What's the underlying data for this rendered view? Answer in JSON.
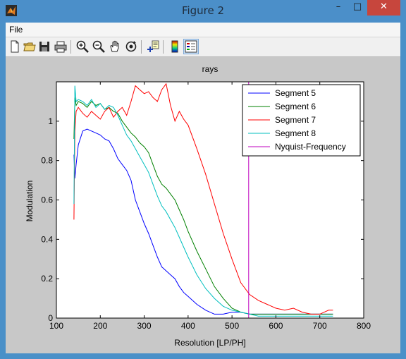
{
  "window": {
    "title": "Figure 2",
    "minimize": "–",
    "maximize": "□",
    "close": "✕"
  },
  "menu": {
    "file": "File"
  },
  "toolbar": {
    "icons": [
      "new-figure-icon",
      "open-icon",
      "save-icon",
      "print-icon",
      "zoom-in-icon",
      "zoom-out-icon",
      "pan-icon",
      "rotate-icon",
      "data-cursor-icon",
      "colorbar-icon",
      "legend-icon"
    ]
  },
  "chart_data": {
    "type": "line",
    "title": "rays",
    "xlabel": "Resolution [LP/PH]",
    "ylabel": "Modulation",
    "xlim": [
      100,
      800
    ],
    "ylim": [
      0,
      1.2
    ],
    "xticks": [
      100,
      200,
      300,
      400,
      500,
      600,
      700,
      800
    ],
    "yticks": [
      0,
      0.2,
      0.4,
      0.6,
      0.8,
      1
    ],
    "grid": false,
    "legend_position": "top-right",
    "series": [
      {
        "name": "Segment 5",
        "color": "#0000ff",
        "x": [
          140,
          142,
          145,
          150,
          160,
          170,
          180,
          190,
          200,
          210,
          220,
          230,
          240,
          250,
          260,
          270,
          280,
          290,
          300,
          310,
          320,
          330,
          340,
          350,
          360,
          370,
          380,
          390,
          400,
          420,
          440,
          460,
          480,
          500,
          520,
          540,
          560,
          580,
          600,
          620,
          640,
          660,
          680,
          700,
          720,
          730
        ],
        "y": [
          0.83,
          0.71,
          0.78,
          0.88,
          0.95,
          0.96,
          0.95,
          0.94,
          0.93,
          0.91,
          0.9,
          0.86,
          0.81,
          0.78,
          0.75,
          0.7,
          0.6,
          0.54,
          0.48,
          0.43,
          0.37,
          0.31,
          0.26,
          0.24,
          0.22,
          0.2,
          0.16,
          0.13,
          0.11,
          0.07,
          0.04,
          0.02,
          0.02,
          0.03,
          0.03,
          0.02,
          0.02,
          0.02,
          0.02,
          0.02,
          0.02,
          0.02,
          0.02,
          0.02,
          0.02,
          0.02
        ]
      },
      {
        "name": "Segment 6",
        "color": "#008000",
        "x": [
          140,
          142,
          145,
          150,
          160,
          170,
          180,
          190,
          200,
          210,
          220,
          230,
          240,
          250,
          260,
          270,
          280,
          290,
          300,
          310,
          320,
          330,
          340,
          350,
          360,
          370,
          380,
          390,
          400,
          420,
          440,
          460,
          480,
          500,
          520,
          540,
          560,
          580,
          600,
          620,
          640,
          660,
          680,
          700,
          720,
          730
        ],
        "y": [
          0.91,
          1.12,
          1.08,
          1.1,
          1.09,
          1.07,
          1.1,
          1.08,
          1.09,
          1.06,
          1.07,
          1.05,
          1.04,
          1.0,
          0.97,
          0.94,
          0.92,
          0.89,
          0.87,
          0.84,
          0.78,
          0.72,
          0.68,
          0.66,
          0.63,
          0.6,
          0.55,
          0.5,
          0.44,
          0.34,
          0.25,
          0.16,
          0.1,
          0.05,
          0.03,
          0.02,
          0.02,
          0.02,
          0.02,
          0.02,
          0.02,
          0.02,
          0.02,
          0.02,
          0.02,
          0.02
        ]
      },
      {
        "name": "Segment 7",
        "color": "#ff0000",
        "x": [
          140,
          142,
          145,
          150,
          160,
          170,
          180,
          190,
          200,
          210,
          220,
          230,
          240,
          250,
          260,
          270,
          280,
          290,
          300,
          310,
          320,
          330,
          340,
          350,
          360,
          370,
          380,
          390,
          400,
          420,
          440,
          460,
          480,
          500,
          520,
          540,
          560,
          580,
          600,
          620,
          640,
          660,
          680,
          700,
          720,
          730
        ],
        "y": [
          0.5,
          0.95,
          1.05,
          1.07,
          1.04,
          1.02,
          1.05,
          1.03,
          1.01,
          1.05,
          1.07,
          1.02,
          1.05,
          1.07,
          1.03,
          1.1,
          1.18,
          1.16,
          1.14,
          1.15,
          1.12,
          1.1,
          1.16,
          1.19,
          1.08,
          1.0,
          1.05,
          1.01,
          0.98,
          0.86,
          0.73,
          0.58,
          0.43,
          0.3,
          0.18,
          0.12,
          0.09,
          0.07,
          0.05,
          0.04,
          0.05,
          0.03,
          0.02,
          0.02,
          0.04,
          0.04
        ]
      },
      {
        "name": "Segment 8",
        "color": "#00bfbf",
        "x": [
          140,
          142,
          145,
          150,
          160,
          170,
          180,
          190,
          200,
          210,
          220,
          230,
          240,
          250,
          260,
          270,
          280,
          290,
          300,
          310,
          320,
          330,
          340,
          350,
          360,
          370,
          380,
          390,
          400,
          420,
          440,
          460,
          480,
          500,
          520,
          540,
          560,
          580,
          600,
          620,
          640,
          660,
          680,
          700,
          720,
          730
        ],
        "y": [
          0.58,
          1.18,
          1.1,
          1.11,
          1.1,
          1.08,
          1.11,
          1.07,
          1.09,
          1.06,
          1.08,
          1.07,
          1.03,
          0.98,
          0.93,
          0.9,
          0.86,
          0.82,
          0.78,
          0.74,
          0.68,
          0.62,
          0.57,
          0.54,
          0.5,
          0.46,
          0.41,
          0.36,
          0.31,
          0.22,
          0.15,
          0.1,
          0.06,
          0.04,
          0.03,
          0.02,
          0.01,
          0.01,
          0.01,
          0.01,
          0.01,
          0.01,
          0.01,
          0.01,
          0.01,
          0.01
        ]
      },
      {
        "name": "Nyquist-Frequency",
        "color": "#bf00bf",
        "x": [
          538,
          538
        ],
        "y": [
          0,
          1.2
        ]
      }
    ]
  }
}
